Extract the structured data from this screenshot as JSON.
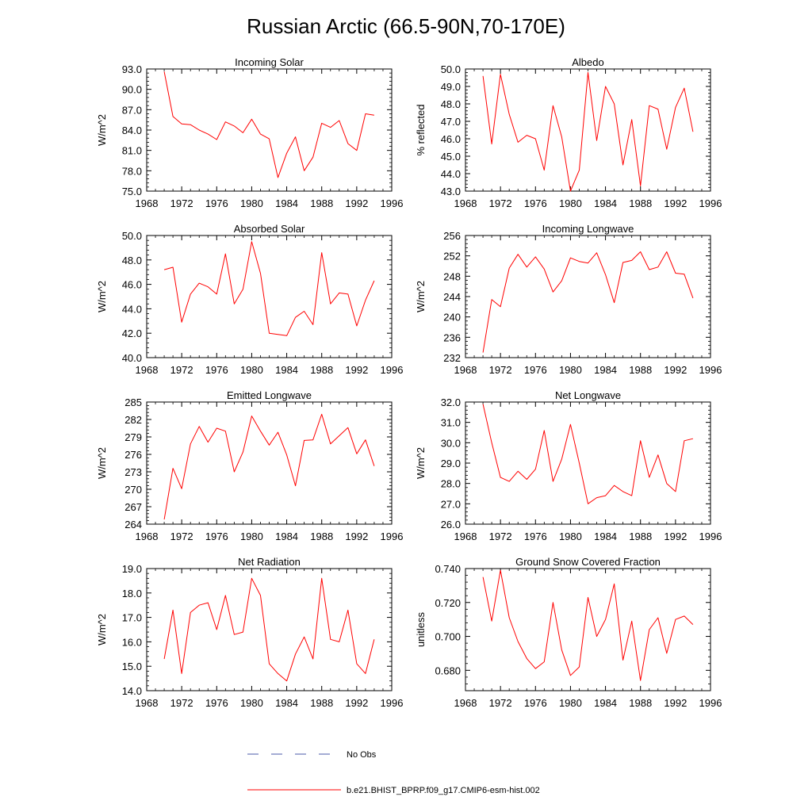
{
  "figure": {
    "title": "Russian Arctic (66.5-90N,70-170E)",
    "colors": {
      "model_line": "#ff0000",
      "obs_line": "#4a5aa8",
      "axis": "#000000"
    },
    "legend": {
      "obs_label": "No Obs",
      "model_label": "b.e21.BHIST_BPRP.f09_g17.CMIP6-esm-hist.002"
    }
  },
  "chart_data": [
    {
      "type": "line",
      "title": "Incoming Solar",
      "xlabel": "",
      "ylabel": "W/m^2",
      "xlim": [
        1968,
        1996
      ],
      "ylim": [
        75.0,
        93.0
      ],
      "xticks": [
        1968,
        1972,
        1976,
        1980,
        1984,
        1988,
        1992,
        1996
      ],
      "yticks": [
        75.0,
        78.0,
        81.0,
        84.0,
        87.0,
        90.0,
        93.0
      ],
      "ydecimals": 1,
      "x": [
        1970,
        1971,
        1972,
        1973,
        1974,
        1975,
        1976,
        1977,
        1978,
        1979,
        1980,
        1981,
        1982,
        1983,
        1984,
        1985,
        1986,
        1987,
        1988,
        1989,
        1990,
        1991,
        1992,
        1993,
        1994
      ],
      "series": [
        {
          "name": "b.e21.BHIST_BPRP.f09_g17.CMIP6-esm-hist.002",
          "values": [
            92.6,
            86.0,
            84.9,
            84.8,
            84.0,
            83.4,
            82.6,
            85.2,
            84.6,
            83.6,
            85.6,
            83.4,
            82.7,
            77.0,
            80.6,
            83.0,
            78.0,
            80.0,
            85.0,
            84.4,
            85.4,
            82.0,
            81.0,
            86.4,
            86.2
          ]
        }
      ]
    },
    {
      "type": "line",
      "title": "Albedo",
      "xlabel": "",
      "ylabel": "% reflected",
      "xlim": [
        1968,
        1996
      ],
      "ylim": [
        43.0,
        50.0
      ],
      "xticks": [
        1968,
        1972,
        1976,
        1980,
        1984,
        1988,
        1992,
        1996
      ],
      "yticks": [
        43.0,
        44.0,
        45.0,
        46.0,
        47.0,
        48.0,
        49.0,
        50.0
      ],
      "ydecimals": 1,
      "x": [
        1970,
        1971,
        1972,
        1973,
        1974,
        1975,
        1976,
        1977,
        1978,
        1979,
        1980,
        1981,
        1982,
        1983,
        1984,
        1985,
        1986,
        1987,
        1988,
        1989,
        1990,
        1991,
        1992,
        1993,
        1994
      ],
      "series": [
        {
          "name": "b.e21.BHIST_BPRP.f09_g17.CMIP6-esm-hist.002",
          "values": [
            49.6,
            45.7,
            49.7,
            47.4,
            45.8,
            46.2,
            46.0,
            44.2,
            47.9,
            46.1,
            43.0,
            44.2,
            49.8,
            45.9,
            49.0,
            48.0,
            44.5,
            47.1,
            43.3,
            47.9,
            47.7,
            45.4,
            47.8,
            48.9,
            46.4
          ]
        }
      ]
    },
    {
      "type": "line",
      "title": "Absorbed Solar",
      "xlabel": "",
      "ylabel": "W/m^2",
      "xlim": [
        1968,
        1996
      ],
      "ylim": [
        40.0,
        50.0
      ],
      "xticks": [
        1968,
        1972,
        1976,
        1980,
        1984,
        1988,
        1992,
        1996
      ],
      "yticks": [
        40.0,
        42.0,
        44.0,
        46.0,
        48.0,
        50.0
      ],
      "ydecimals": 1,
      "x": [
        1970,
        1971,
        1972,
        1973,
        1974,
        1975,
        1976,
        1977,
        1978,
        1979,
        1980,
        1981,
        1982,
        1983,
        1984,
        1985,
        1986,
        1987,
        1988,
        1989,
        1990,
        1991,
        1992,
        1993,
        1994
      ],
      "series": [
        {
          "name": "b.e21.BHIST_BPRP.f09_g17.CMIP6-esm-hist.002",
          "values": [
            47.2,
            47.4,
            42.9,
            45.2,
            46.1,
            45.8,
            45.2,
            48.5,
            44.4,
            45.6,
            49.5,
            46.9,
            42.0,
            41.9,
            41.8,
            43.3,
            43.8,
            42.7,
            48.6,
            44.4,
            45.3,
            45.2,
            42.6,
            44.7,
            46.3
          ]
        }
      ]
    },
    {
      "type": "line",
      "title": "Incoming Longwave",
      "xlabel": "",
      "ylabel": "W/m^2",
      "xlim": [
        1968,
        1996
      ],
      "ylim": [
        232,
        256
      ],
      "xticks": [
        1968,
        1972,
        1976,
        1980,
        1984,
        1988,
        1992,
        1996
      ],
      "yticks": [
        232,
        236,
        240,
        244,
        248,
        252,
        256
      ],
      "ydecimals": 0,
      "x": [
        1970,
        1971,
        1972,
        1973,
        1974,
        1975,
        1976,
        1977,
        1978,
        1979,
        1980,
        1981,
        1982,
        1983,
        1984,
        1985,
        1986,
        1987,
        1988,
        1989,
        1990,
        1991,
        1992,
        1993,
        1994
      ],
      "series": [
        {
          "name": "b.e21.BHIST_BPRP.f09_g17.CMIP6-esm-hist.002",
          "values": [
            233.0,
            243.4,
            242.0,
            249.6,
            252.3,
            249.8,
            251.8,
            249.4,
            244.9,
            247.1,
            251.6,
            250.9,
            250.6,
            252.6,
            248.3,
            242.8,
            250.7,
            251.1,
            252.8,
            249.3,
            249.8,
            252.8,
            248.6,
            248.4,
            243.7
          ]
        }
      ]
    },
    {
      "type": "line",
      "title": "Emitted Longwave",
      "xlabel": "",
      "ylabel": "W/m^2",
      "xlim": [
        1968,
        1996
      ],
      "ylim": [
        264,
        285
      ],
      "xticks": [
        1968,
        1972,
        1976,
        1980,
        1984,
        1988,
        1992,
        1996
      ],
      "yticks": [
        264,
        267,
        270,
        273,
        276,
        279,
        282,
        285
      ],
      "ydecimals": 0,
      "x": [
        1970,
        1971,
        1972,
        1973,
        1974,
        1975,
        1976,
        1977,
        1978,
        1979,
        1980,
        1981,
        1982,
        1983,
        1984,
        1985,
        1986,
        1987,
        1988,
        1989,
        1990,
        1991,
        1992,
        1993,
        1994
      ],
      "series": [
        {
          "name": "b.e21.BHIST_BPRP.f09_g17.CMIP6-esm-hist.002",
          "values": [
            264.8,
            273.6,
            270.1,
            277.8,
            280.8,
            278.1,
            280.5,
            280.0,
            273.0,
            276.4,
            282.6,
            280.0,
            277.6,
            279.8,
            275.9,
            270.6,
            278.4,
            278.5,
            282.9,
            277.8,
            279.2,
            280.6,
            276.1,
            278.5,
            274.0
          ]
        }
      ]
    },
    {
      "type": "line",
      "title": "Net Longwave",
      "xlabel": "",
      "ylabel": "W/m^2",
      "xlim": [
        1968,
        1996
      ],
      "ylim": [
        26.0,
        32.0
      ],
      "xticks": [
        1968,
        1972,
        1976,
        1980,
        1984,
        1988,
        1992,
        1996
      ],
      "yticks": [
        26.0,
        27.0,
        28.0,
        29.0,
        30.0,
        31.0,
        32.0
      ],
      "ydecimals": 1,
      "x": [
        1970,
        1971,
        1972,
        1973,
        1974,
        1975,
        1976,
        1977,
        1978,
        1979,
        1980,
        1981,
        1982,
        1983,
        1984,
        1985,
        1986,
        1987,
        1988,
        1989,
        1990,
        1991,
        1992,
        1993,
        1994
      ],
      "series": [
        {
          "name": "b.e21.BHIST_BPRP.f09_g17.CMIP6-esm-hist.002",
          "values": [
            31.9,
            30.0,
            28.3,
            28.1,
            28.6,
            28.2,
            28.7,
            30.6,
            28.1,
            29.2,
            30.9,
            29.0,
            27.0,
            27.3,
            27.4,
            27.9,
            27.6,
            27.4,
            30.1,
            28.3,
            29.4,
            28.0,
            27.6,
            30.1,
            30.2
          ]
        }
      ]
    },
    {
      "type": "line",
      "title": "Net Radiation",
      "xlabel": "",
      "ylabel": "W/m^2",
      "xlim": [
        1968,
        1996
      ],
      "ylim": [
        14.0,
        19.0
      ],
      "xticks": [
        1968,
        1972,
        1976,
        1980,
        1984,
        1988,
        1992,
        1996
      ],
      "yticks": [
        14.0,
        15.0,
        16.0,
        17.0,
        18.0,
        19.0
      ],
      "ydecimals": 1,
      "x": [
        1970,
        1971,
        1972,
        1973,
        1974,
        1975,
        1976,
        1977,
        1978,
        1979,
        1980,
        1981,
        1982,
        1983,
        1984,
        1985,
        1986,
        1987,
        1988,
        1989,
        1990,
        1991,
        1992,
        1993,
        1994
      ],
      "series": [
        {
          "name": "b.e21.BHIST_BPRP.f09_g17.CMIP6-esm-hist.002",
          "values": [
            15.3,
            17.3,
            14.7,
            17.2,
            17.5,
            17.6,
            16.5,
            17.9,
            16.3,
            16.4,
            18.6,
            17.9,
            15.1,
            14.7,
            14.4,
            15.5,
            16.2,
            15.3,
            18.6,
            16.1,
            16.0,
            17.3,
            15.1,
            14.7,
            16.1
          ]
        }
      ]
    },
    {
      "type": "line",
      "title": "Ground Snow Covered Fraction",
      "xlabel": "",
      "ylabel": "unitless",
      "xlim": [
        1968,
        1996
      ],
      "ylim": [
        0.668,
        0.74
      ],
      "xticks": [
        1968,
        1972,
        1976,
        1980,
        1984,
        1988,
        1992,
        1996
      ],
      "yticks": [
        0.68,
        0.7,
        0.72,
        0.74
      ],
      "ydecimals": 3,
      "x": [
        1970,
        1971,
        1972,
        1973,
        1974,
        1975,
        1976,
        1977,
        1978,
        1979,
        1980,
        1981,
        1982,
        1983,
        1984,
        1985,
        1986,
        1987,
        1988,
        1989,
        1990,
        1991,
        1992,
        1993,
        1994
      ],
      "series": [
        {
          "name": "b.e21.BHIST_BPRP.f09_g17.CMIP6-esm-hist.002",
          "values": [
            0.735,
            0.709,
            0.739,
            0.711,
            0.697,
            0.687,
            0.681,
            0.685,
            0.72,
            0.692,
            0.677,
            0.682,
            0.723,
            0.7,
            0.71,
            0.731,
            0.686,
            0.709,
            0.674,
            0.704,
            0.711,
            0.69,
            0.71,
            0.712,
            0.707
          ]
        }
      ]
    }
  ]
}
